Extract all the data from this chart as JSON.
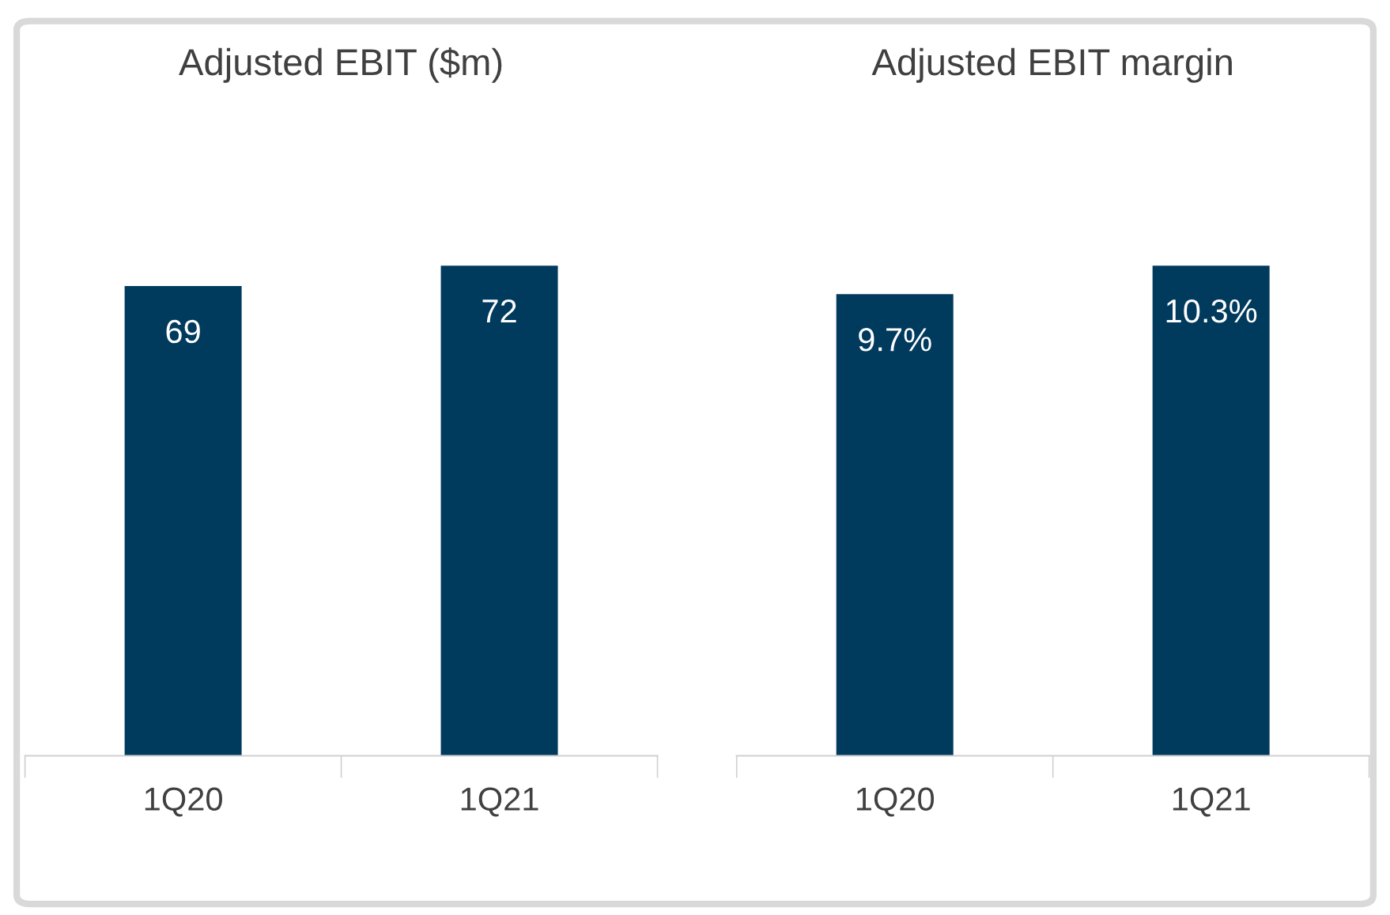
{
  "chart_data": [
    {
      "type": "bar",
      "title": "Adjusted EBIT ($m)",
      "categories": [
        "1Q20",
        "1Q21"
      ],
      "values": [
        69,
        72
      ],
      "color": "#003a5d",
      "value_labels": [
        "69",
        "72"
      ],
      "tick_labels": "x",
      "grid": false,
      "legend": false
    },
    {
      "type": "bar",
      "title": "Adjusted EBIT margin",
      "categories": [
        "1Q20",
        "1Q21"
      ],
      "values": [
        9.7,
        10.3
      ],
      "color": "#003a5d",
      "value_labels": [
        "9.7%",
        "10.3%"
      ],
      "tick_labels": "x",
      "grid": false,
      "legend": false
    }
  ]
}
